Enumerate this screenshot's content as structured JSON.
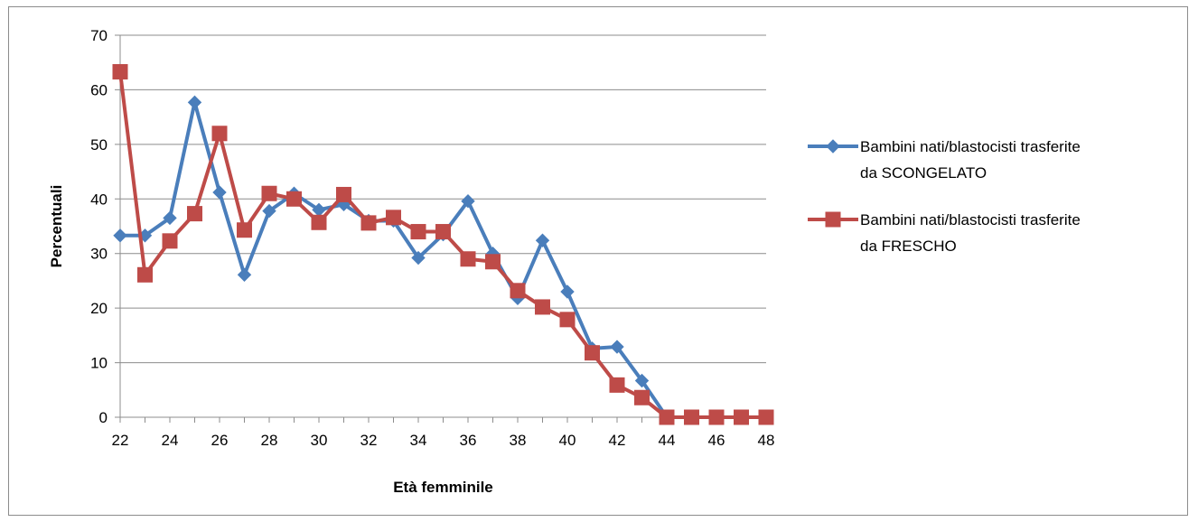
{
  "chart_data": {
    "type": "line",
    "title": "",
    "xlabel": "Età femminile",
    "ylabel": "Percentuali",
    "x": [
      22,
      23,
      24,
      25,
      26,
      27,
      28,
      29,
      30,
      31,
      32,
      33,
      34,
      35,
      36,
      37,
      38,
      39,
      40,
      41,
      42,
      43,
      44,
      45,
      46,
      47,
      48
    ],
    "x_tick_labels": [
      "22",
      "24",
      "26",
      "28",
      "30",
      "32",
      "34",
      "36",
      "38",
      "40",
      "42",
      "44",
      "46",
      "48"
    ],
    "y_tick_labels": [
      "0",
      "10",
      "20",
      "30",
      "40",
      "50",
      "60",
      "70"
    ],
    "xlim": [
      22,
      48
    ],
    "ylim": [
      0,
      70
    ],
    "grid": "horizontal",
    "legend_position": "right",
    "series": [
      {
        "name": "Bambini nati/blastocisti trasferite da SCONGELATO",
        "legend_lines": [
          "Bambini nati/blastocisti trasferite",
          "da SCONGELATO"
        ],
        "color": "#4a7ebb",
        "marker": "diamond",
        "values": [
          33.3,
          33.3,
          36.5,
          57.7,
          41.2,
          26.1,
          37.8,
          41.0,
          38.0,
          39.0,
          36.0,
          36.0,
          29.2,
          33.5,
          39.6,
          30.0,
          21.8,
          32.4,
          23.0,
          12.6,
          12.9,
          6.7,
          0,
          0,
          0,
          0,
          0
        ]
      },
      {
        "name": "Bambini nati/blastocisti trasferite da FRESCHO",
        "legend_lines": [
          "Bambini nati/blastocisti trasferite",
          "da FRESCHO"
        ],
        "color": "#be4b48",
        "marker": "square",
        "values": [
          63.3,
          26.1,
          32.3,
          37.3,
          52.0,
          34.3,
          41.0,
          40.0,
          35.7,
          40.8,
          35.6,
          36.6,
          34.0,
          34.0,
          29.0,
          28.5,
          23.2,
          20.2,
          17.9,
          11.8,
          5.9,
          3.6,
          0,
          0,
          0,
          0,
          0
        ]
      }
    ]
  }
}
